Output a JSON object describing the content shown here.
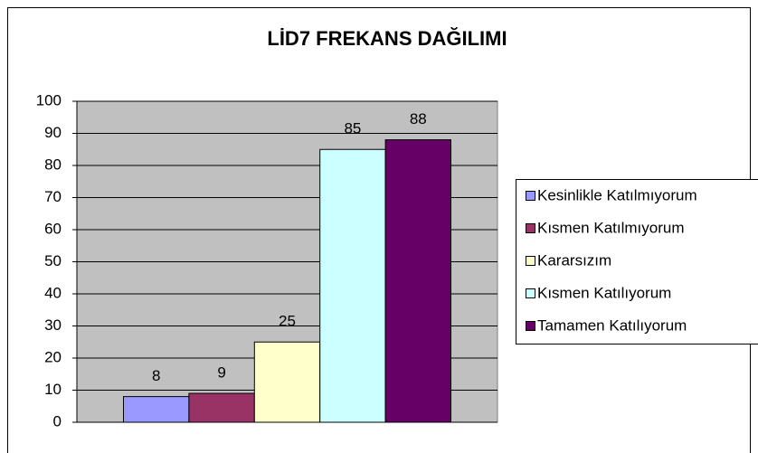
{
  "chart_data": {
    "type": "bar",
    "title": "LİD7 FREKANS DAĞILIMI",
    "categories": [
      null
    ],
    "series": [
      {
        "name": "Kesinlikle Katılmıyorum",
        "color": "#9999ff",
        "values": [
          8
        ]
      },
      {
        "name": "Kısmen Katılmıyorum",
        "color": "#993366",
        "values": [
          9
        ]
      },
      {
        "name": "Kararsızım",
        "color": "#ffffcc",
        "values": [
          25
        ]
      },
      {
        "name": "Kısmen Katılıyorum",
        "color": "#ccffff",
        "values": [
          85
        ]
      },
      {
        "name": "Tamamen Katılıyorum",
        "color": "#660066",
        "values": [
          88
        ]
      }
    ],
    "ylim": [
      0,
      100
    ],
    "yticks": [
      0,
      10,
      20,
      30,
      40,
      50,
      60,
      70,
      80,
      90,
      100
    ],
    "grid": true,
    "legend": "right",
    "plot_background": "#c0c0c0"
  }
}
